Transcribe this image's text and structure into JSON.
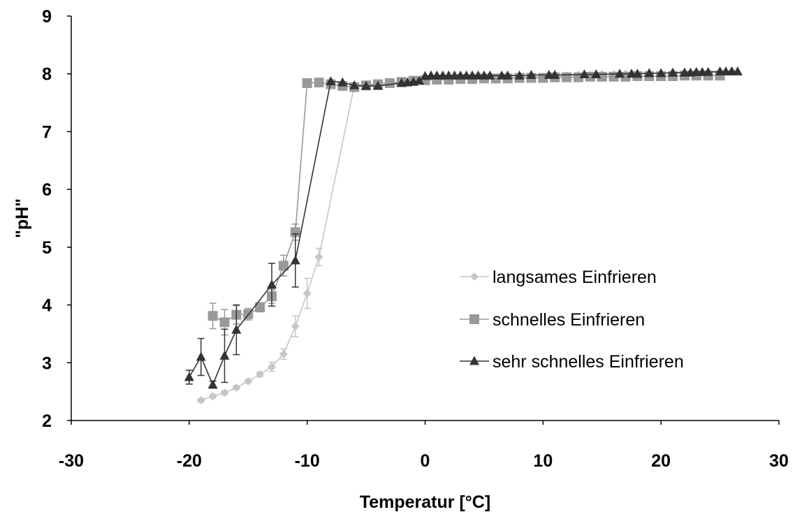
{
  "chart_data": {
    "type": "scatter",
    "xlabel": "Temperatur [°C]",
    "ylabel": "\"pH\"",
    "xlim": [
      -30,
      30
    ],
    "ylim": [
      2,
      9
    ],
    "xticks": [
      -30,
      -20,
      -10,
      0,
      10,
      20,
      30
    ],
    "yticks": [
      2,
      3,
      4,
      5,
      6,
      7,
      8,
      9
    ],
    "grid": false,
    "legend_position": "right",
    "series": [
      {
        "name": "langsames Einfrieren",
        "color": "#c6c6c6",
        "marker": "diamond",
        "points": [
          {
            "x": -19.0,
            "y": 2.35,
            "err": 0.03
          },
          {
            "x": -18.0,
            "y": 2.42,
            "err": 0.03
          },
          {
            "x": -17.0,
            "y": 2.48,
            "err": 0.03
          },
          {
            "x": -16.0,
            "y": 2.57,
            "err": 0.03
          },
          {
            "x": -15.0,
            "y": 2.68,
            "err": 0.03
          },
          {
            "x": -14.0,
            "y": 2.8,
            "err": 0.04
          },
          {
            "x": -13.0,
            "y": 2.93,
            "err": 0.08
          },
          {
            "x": -12.0,
            "y": 3.15,
            "err": 0.09
          },
          {
            "x": -11.0,
            "y": 3.63,
            "err": 0.18
          },
          {
            "x": -10.0,
            "y": 4.2,
            "err": 0.26
          },
          {
            "x": -9.0,
            "y": 4.83,
            "err": 0.15
          },
          {
            "x": -6.0,
            "y": 7.8,
            "err": 0
          },
          {
            "x": -5.0,
            "y": 7.82,
            "err": 0
          },
          {
            "x": -4.0,
            "y": 7.83,
            "err": 0
          },
          {
            "x": -3.0,
            "y": 7.84,
            "err": 0
          },
          {
            "x": -2.0,
            "y": 7.86,
            "err": 0
          },
          {
            "x": -1.0,
            "y": 7.88,
            "err": 0
          },
          {
            "x": 0.0,
            "y": 7.9,
            "err": 0
          },
          {
            "x": 1.0,
            "y": 7.9,
            "err": 0
          },
          {
            "x": 2.0,
            "y": 7.91,
            "err": 0
          },
          {
            "x": 3.0,
            "y": 7.91,
            "err": 0
          },
          {
            "x": 4.0,
            "y": 7.92,
            "err": 0
          },
          {
            "x": 5.0,
            "y": 7.92,
            "err": 0
          },
          {
            "x": 6.0,
            "y": 7.93,
            "err": 0
          },
          {
            "x": 7.0,
            "y": 7.93,
            "err": 0
          },
          {
            "x": 8.0,
            "y": 7.94,
            "err": 0
          },
          {
            "x": 9.0,
            "y": 7.95,
            "err": 0
          },
          {
            "x": 10.0,
            "y": 7.95,
            "err": 0
          },
          {
            "x": 11.0,
            "y": 7.96,
            "err": 0
          },
          {
            "x": 12.0,
            "y": 7.97,
            "err": 0
          },
          {
            "x": 13.0,
            "y": 7.98,
            "err": 0
          },
          {
            "x": 14.0,
            "y": 7.98,
            "err": 0
          },
          {
            "x": 15.0,
            "y": 7.99,
            "err": 0
          },
          {
            "x": 16.0,
            "y": 7.99,
            "err": 0
          },
          {
            "x": 17.0,
            "y": 8.0,
            "err": 0
          },
          {
            "x": 18.0,
            "y": 8.0,
            "err": 0
          },
          {
            "x": 19.0,
            "y": 8.01,
            "err": 0
          },
          {
            "x": 20.0,
            "y": 8.01,
            "err": 0
          },
          {
            "x": 21.0,
            "y": 8.02,
            "err": 0
          },
          {
            "x": 22.0,
            "y": 8.02,
            "err": 0
          },
          {
            "x": 23.0,
            "y": 8.03,
            "err": 0
          },
          {
            "x": 24.0,
            "y": 8.03,
            "err": 0
          },
          {
            "x": 25.0,
            "y": 8.04,
            "err": 0
          },
          {
            "x": 26.0,
            "y": 8.05,
            "err": 0
          }
        ]
      },
      {
        "name": "schnelles Einfrieren",
        "color": "#999999",
        "marker": "square",
        "points": [
          {
            "x": -18.0,
            "y": 3.81,
            "err": 0.22
          },
          {
            "x": -17.0,
            "y": 3.7,
            "err": 0.22
          },
          {
            "x": -16.0,
            "y": 3.83,
            "err": 0.16
          },
          {
            "x": -15.0,
            "y": 3.84,
            "err": 0.1
          },
          {
            "x": -14.0,
            "y": 3.96,
            "err": 0.08
          },
          {
            "x": -13.0,
            "y": 4.15,
            "err": 0.12
          },
          {
            "x": -12.0,
            "y": 4.68,
            "err": 0.18
          },
          {
            "x": -11.0,
            "y": 5.26,
            "err": 0.14
          },
          {
            "x": -10.0,
            "y": 7.84,
            "err": 0
          },
          {
            "x": -9.0,
            "y": 7.85,
            "err": 0
          },
          {
            "x": -8.0,
            "y": 7.82,
            "err": 0
          },
          {
            "x": -7.0,
            "y": 7.79,
            "err": 0
          },
          {
            "x": -6.0,
            "y": 7.77,
            "err": 0
          },
          {
            "x": -5.0,
            "y": 7.8,
            "err": 0
          },
          {
            "x": -4.0,
            "y": 7.82,
            "err": 0
          },
          {
            "x": -3.0,
            "y": 7.84,
            "err": 0
          },
          {
            "x": -2.0,
            "y": 7.86,
            "err": 0
          },
          {
            "x": -1.0,
            "y": 7.88,
            "err": 0
          },
          {
            "x": 0.0,
            "y": 7.89,
            "err": 0
          },
          {
            "x": 1.0,
            "y": 7.9,
            "err": 0
          },
          {
            "x": 2.0,
            "y": 7.9,
            "err": 0
          },
          {
            "x": 3.0,
            "y": 7.91,
            "err": 0
          },
          {
            "x": 4.0,
            "y": 7.91,
            "err": 0
          },
          {
            "x": 5.0,
            "y": 7.92,
            "err": 0
          },
          {
            "x": 6.0,
            "y": 7.92,
            "err": 0
          },
          {
            "x": 7.0,
            "y": 7.92,
            "err": 0
          },
          {
            "x": 8.0,
            "y": 7.93,
            "err": 0
          },
          {
            "x": 9.0,
            "y": 7.93,
            "err": 0
          },
          {
            "x": 10.0,
            "y": 7.93,
            "err": 0
          },
          {
            "x": 11.0,
            "y": 7.94,
            "err": 0
          },
          {
            "x": 12.0,
            "y": 7.94,
            "err": 0
          },
          {
            "x": 13.0,
            "y": 7.94,
            "err": 0
          },
          {
            "x": 14.0,
            "y": 7.95,
            "err": 0
          },
          {
            "x": 15.0,
            "y": 7.95,
            "err": 0
          },
          {
            "x": 16.0,
            "y": 7.95,
            "err": 0
          },
          {
            "x": 17.0,
            "y": 7.95,
            "err": 0
          },
          {
            "x": 18.0,
            "y": 7.96,
            "err": 0
          },
          {
            "x": 19.0,
            "y": 7.96,
            "err": 0
          },
          {
            "x": 20.0,
            "y": 7.96,
            "err": 0
          },
          {
            "x": 21.0,
            "y": 7.96,
            "err": 0
          },
          {
            "x": 22.0,
            "y": 7.97,
            "err": 0
          },
          {
            "x": 23.0,
            "y": 7.97,
            "err": 0
          },
          {
            "x": 24.0,
            "y": 7.97,
            "err": 0
          },
          {
            "x": 25.0,
            "y": 7.97,
            "err": 0
          }
        ]
      },
      {
        "name": "sehr schnelles Einfrieren",
        "color": "#333333",
        "marker": "triangle",
        "points": [
          {
            "x": -20.0,
            "y": 2.75,
            "err": 0.12
          },
          {
            "x": -19.0,
            "y": 3.1,
            "err": 0.32
          },
          {
            "x": -18.0,
            "y": 2.62,
            "err": 0.06
          },
          {
            "x": -17.0,
            "y": 3.12,
            "err": 0.46
          },
          {
            "x": -16.0,
            "y": 3.57,
            "err": 0.43
          },
          {
            "x": -13.0,
            "y": 4.35,
            "err": 0.37
          },
          {
            "x": -11.0,
            "y": 4.77,
            "err": 0.46
          },
          {
            "x": -8.0,
            "y": 7.87,
            "err": 0
          },
          {
            "x": -7.0,
            "y": 7.85,
            "err": 0
          },
          {
            "x": -6.0,
            "y": 7.8,
            "err": 0
          },
          {
            "x": -5.0,
            "y": 7.79,
            "err": 0
          },
          {
            "x": -4.0,
            "y": 7.79,
            "err": 0
          },
          {
            "x": -2.0,
            "y": 7.84,
            "err": 0
          },
          {
            "x": -1.5,
            "y": 7.85,
            "err": 0
          },
          {
            "x": -1.0,
            "y": 7.86,
            "err": 0
          },
          {
            "x": -0.5,
            "y": 7.88,
            "err": 0
          },
          {
            "x": 0.0,
            "y": 7.96,
            "err": 0
          },
          {
            "x": 0.5,
            "y": 7.97,
            "err": 0
          },
          {
            "x": 1.0,
            "y": 7.97,
            "err": 0
          },
          {
            "x": 1.5,
            "y": 7.97,
            "err": 0
          },
          {
            "x": 2.0,
            "y": 7.97,
            "err": 0
          },
          {
            "x": 2.5,
            "y": 7.97,
            "err": 0
          },
          {
            "x": 3.0,
            "y": 7.97,
            "err": 0
          },
          {
            "x": 3.5,
            "y": 7.97,
            "err": 0
          },
          {
            "x": 4.0,
            "y": 7.97,
            "err": 0
          },
          {
            "x": 4.5,
            "y": 7.97,
            "err": 0
          },
          {
            "x": 5.0,
            "y": 7.97,
            "err": 0
          },
          {
            "x": 5.5,
            "y": 7.97,
            "err": 0
          },
          {
            "x": 6.5,
            "y": 7.97,
            "err": 0
          },
          {
            "x": 7.0,
            "y": 7.97,
            "err": 0
          },
          {
            "x": 8.0,
            "y": 7.97,
            "err": 0
          },
          {
            "x": 9.0,
            "y": 7.98,
            "err": 0
          },
          {
            "x": 10.5,
            "y": 7.98,
            "err": 0
          },
          {
            "x": 11.0,
            "y": 7.98,
            "err": 0
          },
          {
            "x": 13.5,
            "y": 7.99,
            "err": 0
          },
          {
            "x": 14.5,
            "y": 7.99,
            "err": 0
          },
          {
            "x": 16.5,
            "y": 8.0,
            "err": 0
          },
          {
            "x": 17.5,
            "y": 8.0,
            "err": 0
          },
          {
            "x": 18.0,
            "y": 8.0,
            "err": 0
          },
          {
            "x": 19.0,
            "y": 8.01,
            "err": 0
          },
          {
            "x": 20.0,
            "y": 8.01,
            "err": 0
          },
          {
            "x": 21.0,
            "y": 8.02,
            "err": 0
          },
          {
            "x": 22.0,
            "y": 8.02,
            "err": 0
          },
          {
            "x": 22.5,
            "y": 8.02,
            "err": 0
          },
          {
            "x": 23.0,
            "y": 8.03,
            "err": 0
          },
          {
            "x": 23.5,
            "y": 8.03,
            "err": 0
          },
          {
            "x": 24.0,
            "y": 8.03,
            "err": 0
          },
          {
            "x": 25.0,
            "y": 8.04,
            "err": 0
          },
          {
            "x": 25.5,
            "y": 8.04,
            "err": 0
          },
          {
            "x": 26.0,
            "y": 8.04,
            "err": 0
          },
          {
            "x": 26.5,
            "y": 8.04,
            "err": 0
          }
        ]
      }
    ]
  }
}
